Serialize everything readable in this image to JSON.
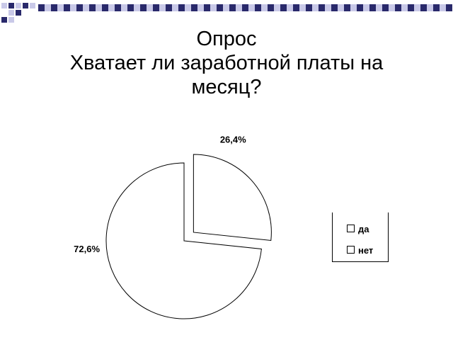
{
  "title": {
    "line1": "Опрос",
    "line2": "Хватает ли заработной платы на",
    "line3": "месяц?"
  },
  "colors": {
    "pattern_main": "#29296b",
    "pattern_light": "#c9c9e8",
    "slice_fill": "#ffffff",
    "slice_stroke": "#000000"
  },
  "chart_data": {
    "type": "pie",
    "categories": [
      "да",
      "нет"
    ],
    "values": [
      26.4,
      72.6
    ],
    "data_labels": [
      "26,4%",
      "72,6%"
    ],
    "exploded": "да",
    "legend": [
      "да",
      "нет"
    ],
    "legend_position": "right"
  }
}
